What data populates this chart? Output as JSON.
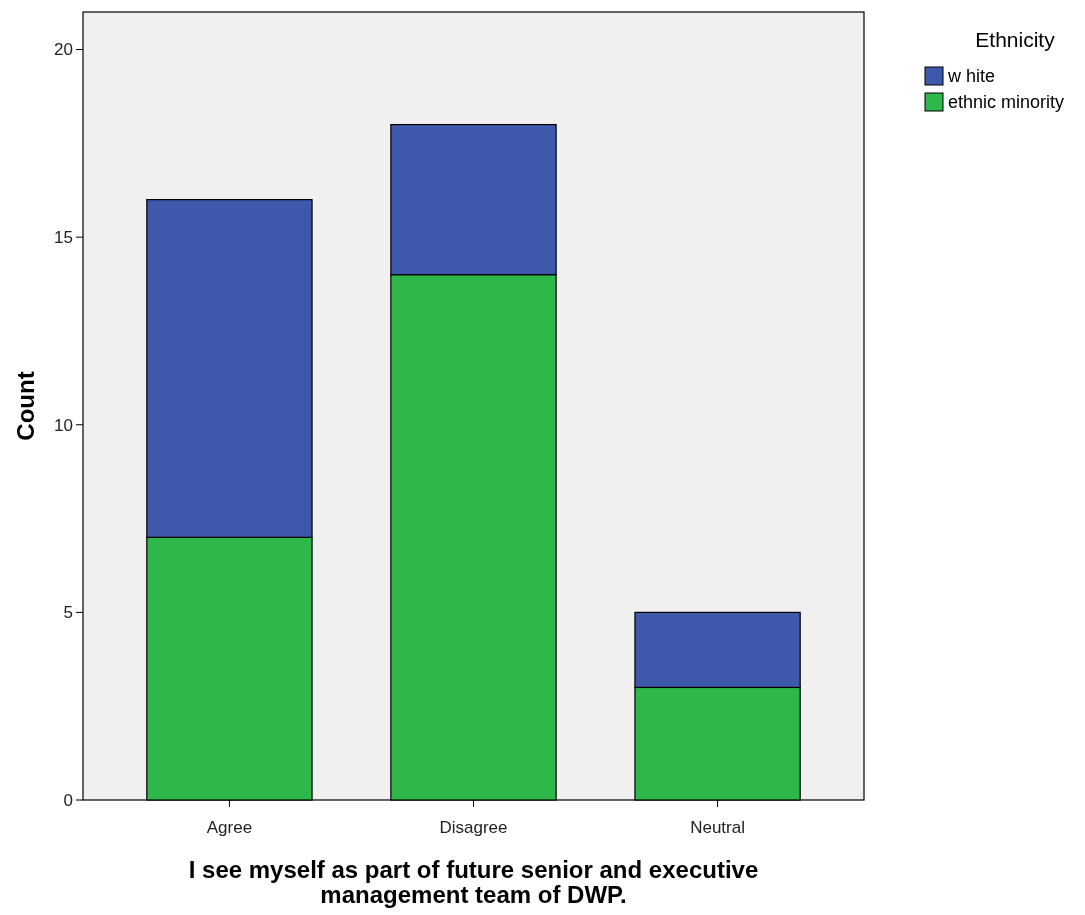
{
  "chart_data": {
    "type": "bar",
    "stacked": true,
    "xlabel": "I see myself as part of future senior and executive management team of DWP.",
    "ylabel": "Count",
    "legend_title": "Ethnicity",
    "legend": "top right",
    "categories": [
      "Agree",
      "Disagree",
      "Neutral"
    ],
    "series": [
      {
        "name": "ethnic minority",
        "color": "#2fb84a",
        "values": [
          7,
          14,
          3
        ]
      },
      {
        "name": "w hite",
        "color": "#3e58ac",
        "values": [
          9,
          4,
          2
        ]
      }
    ],
    "ylim": [
      0,
      21
    ],
    "yticks": [
      0,
      5,
      10,
      15,
      20
    ],
    "grid": false
  }
}
